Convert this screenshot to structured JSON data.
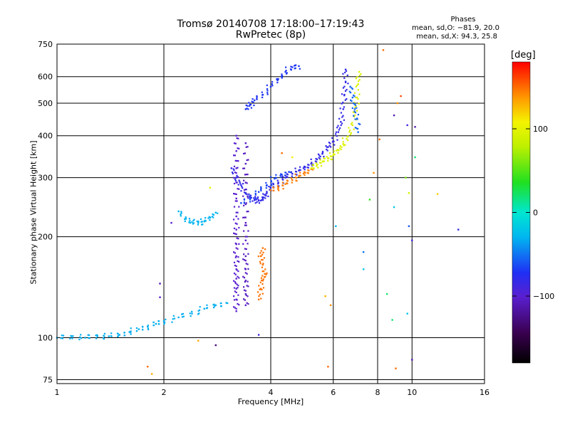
{
  "chart_data": {
    "type": "scatter",
    "title": "Tromsø 20140708 17:18:00–17:19:43",
    "subtitle": "RwPretec (8p)",
    "xlabel": "Frequency [MHz]",
    "ylabel": "Stationary phase Virtual Height [km]",
    "x_scale": "log",
    "y_scale": "log",
    "xlim": [
      1,
      16
    ],
    "ylim": [
      73,
      750
    ],
    "x_ticks": [
      1,
      2,
      4,
      6,
      8,
      10,
      16
    ],
    "y_ticks": [
      75,
      100,
      200,
      300,
      400,
      500,
      600,
      750
    ],
    "grid": true,
    "phases": {
      "heading": "Phases",
      "o_mode": "mean, sd,O: −81.9, 20.0",
      "x_mode": "mean, sd,X:  94.3, 25.8"
    },
    "colorbar": {
      "label": "[deg]",
      "ticks": [
        100,
        0,
        -100
      ],
      "range": [
        -180,
        180
      ]
    },
    "traces": [
      {
        "name": "",
        "phase": -32,
        "points": [
          [
            1.0,
            100
          ],
          [
            1.1,
            101
          ],
          [
            1.2,
            100
          ],
          [
            1.3,
            101
          ],
          [
            1.4,
            101
          ],
          [
            1.5,
            102
          ],
          [
            1.6,
            104
          ],
          [
            1.7,
            106
          ],
          [
            1.8,
            108
          ],
          [
            1.9,
            110
          ],
          [
            2.0,
            112
          ],
          [
            2.2,
            115
          ],
          [
            2.4,
            118
          ],
          [
            2.6,
            122
          ],
          [
            2.8,
            125
          ],
          [
            3.0,
            127
          ]
        ]
      },
      {
        "name": "",
        "phase": -30,
        "points": [
          [
            2.2,
            238
          ],
          [
            2.3,
            226
          ],
          [
            2.4,
            221
          ],
          [
            2.5,
            220
          ],
          [
            2.6,
            222
          ],
          [
            2.7,
            228
          ],
          [
            2.8,
            236
          ]
        ]
      },
      {
        "name": "",
        "phase": -82,
        "points": [
          [
            3.1,
            320
          ],
          [
            3.2,
            300
          ],
          [
            3.3,
            285
          ],
          [
            3.4,
            270
          ],
          [
            3.5,
            262
          ],
          [
            3.6,
            258
          ],
          [
            3.7,
            256
          ],
          [
            3.8,
            260
          ],
          [
            3.9,
            270
          ],
          [
            4.0,
            280
          ],
          [
            4.2,
            290
          ],
          [
            4.4,
            300
          ],
          [
            4.6,
            308
          ],
          [
            4.8,
            315
          ],
          [
            5.0,
            322
          ],
          [
            5.2,
            330
          ],
          [
            5.4,
            340
          ],
          [
            5.6,
            355
          ],
          [
            5.8,
            370
          ],
          [
            6.0,
            385
          ],
          [
            6.2,
            410
          ],
          [
            6.3,
            440
          ],
          [
            6.4,
            480
          ],
          [
            6.45,
            530
          ],
          [
            6.5,
            580
          ],
          [
            6.5,
            630
          ]
        ]
      },
      {
        "name": "",
        "phase": -65,
        "points": [
          [
            3.3,
            252
          ],
          [
            3.5,
            260
          ],
          [
            3.7,
            272
          ],
          [
            3.9,
            285
          ],
          [
            4.1,
            298
          ],
          [
            4.3,
            306
          ],
          [
            4.5,
            312
          ]
        ]
      },
      {
        "name": "",
        "phase": -70,
        "points": [
          [
            3.4,
            480
          ],
          [
            3.5,
            495
          ],
          [
            3.6,
            510
          ],
          [
            3.8,
            530
          ],
          [
            4.0,
            560
          ],
          [
            4.2,
            590
          ],
          [
            4.4,
            620
          ],
          [
            4.6,
            640
          ],
          [
            4.8,
            645
          ]
        ]
      },
      {
        "name": "",
        "phase": -100,
        "points": [
          [
            3.2,
            400
          ],
          [
            3.2,
            360
          ],
          [
            3.2,
            320
          ],
          [
            3.2,
            290
          ],
          [
            3.2,
            260
          ],
          [
            3.2,
            230
          ],
          [
            3.2,
            210
          ],
          [
            3.2,
            190
          ],
          [
            3.2,
            175
          ],
          [
            3.2,
            160
          ],
          [
            3.2,
            150
          ],
          [
            3.2,
            140
          ],
          [
            3.2,
            130
          ],
          [
            3.2,
            120
          ]
        ]
      },
      {
        "name": "",
        "phase": -105,
        "points": [
          [
            3.4,
            380
          ],
          [
            3.4,
            330
          ],
          [
            3.4,
            290
          ],
          [
            3.4,
            250
          ],
          [
            3.4,
            220
          ],
          [
            3.4,
            195
          ],
          [
            3.4,
            175
          ],
          [
            3.4,
            160
          ],
          [
            3.4,
            148
          ],
          [
            3.4,
            135
          ],
          [
            3.4,
            125
          ]
        ]
      },
      {
        "name": "",
        "phase": 148,
        "points": [
          [
            3.7,
            130
          ],
          [
            3.75,
            140
          ],
          [
            3.8,
            148
          ],
          [
            3.85,
            155
          ],
          [
            3.8,
            165
          ],
          [
            3.75,
            175
          ],
          [
            3.8,
            185
          ]
        ]
      },
      {
        "name": "",
        "phase": 145,
        "points": [
          [
            4.0,
            275
          ],
          [
            4.2,
            280
          ],
          [
            4.4,
            287
          ],
          [
            4.6,
            295
          ],
          [
            4.8,
            303
          ],
          [
            5.0,
            310
          ],
          [
            5.2,
            318
          ]
        ]
      },
      {
        "name": "",
        "phase": 95,
        "points": [
          [
            5.2,
            320
          ],
          [
            5.4,
            328
          ],
          [
            5.6,
            335
          ],
          [
            5.8,
            342
          ],
          [
            6.0,
            350
          ],
          [
            6.2,
            362
          ],
          [
            6.4,
            378
          ],
          [
            6.6,
            398
          ],
          [
            6.8,
            430
          ],
          [
            6.9,
            470
          ],
          [
            7.0,
            520
          ],
          [
            7.05,
            570
          ],
          [
            7.1,
            620
          ]
        ]
      },
      {
        "name": "",
        "phase": -55,
        "points": [
          [
            6.7,
            560
          ],
          [
            6.8,
            520
          ],
          [
            6.9,
            480
          ],
          [
            7.0,
            450
          ],
          [
            7.05,
            410
          ]
        ]
      }
    ],
    "scattered": [
      {
        "x": 8.3,
        "y": 720,
        "phase": 150
      },
      {
        "x": 9.1,
        "y": 500,
        "phase": 140
      },
      {
        "x": 9.3,
        "y": 525,
        "phase": 160
      },
      {
        "x": 8.9,
        "y": 460,
        "phase": -110
      },
      {
        "x": 9.7,
        "y": 430,
        "phase": -90
      },
      {
        "x": 10.2,
        "y": 425,
        "phase": -110
      },
      {
        "x": 10.2,
        "y": 345,
        "phase": 20
      },
      {
        "x": 9.6,
        "y": 300,
        "phase": 60
      },
      {
        "x": 11.8,
        "y": 268,
        "phase": 120
      },
      {
        "x": 9.8,
        "y": 270,
        "phase": 90
      },
      {
        "x": 8.1,
        "y": 390,
        "phase": 150
      },
      {
        "x": 8.9,
        "y": 245,
        "phase": -20
      },
      {
        "x": 9.8,
        "y": 215,
        "phase": -60
      },
      {
        "x": 13.5,
        "y": 210,
        "phase": -80
      },
      {
        "x": 10.0,
        "y": 195,
        "phase": -90
      },
      {
        "x": 7.3,
        "y": 180,
        "phase": -50
      },
      {
        "x": 7.3,
        "y": 160,
        "phase": -20
      },
      {
        "x": 8.5,
        "y": 135,
        "phase": 20
      },
      {
        "x": 9.7,
        "y": 118,
        "phase": -20
      },
      {
        "x": 8.8,
        "y": 113,
        "phase": 20
      },
      {
        "x": 10.0,
        "y": 86,
        "phase": -110
      },
      {
        "x": 9.0,
        "y": 81,
        "phase": 150
      },
      {
        "x": 5.7,
        "y": 133,
        "phase": 130
      },
      {
        "x": 5.9,
        "y": 125,
        "phase": 140
      },
      {
        "x": 5.8,
        "y": 82,
        "phase": 150
      },
      {
        "x": 6.1,
        "y": 215,
        "phase": -30
      },
      {
        "x": 7.6,
        "y": 258,
        "phase": 40
      },
      {
        "x": 7.8,
        "y": 310,
        "phase": 140
      },
      {
        "x": 2.7,
        "y": 280,
        "phase": 100
      },
      {
        "x": 2.1,
        "y": 220,
        "phase": -100
      },
      {
        "x": 1.95,
        "y": 132,
        "phase": -100
      },
      {
        "x": 1.95,
        "y": 145,
        "phase": -110
      },
      {
        "x": 1.8,
        "y": 82,
        "phase": 150
      },
      {
        "x": 1.85,
        "y": 78,
        "phase": 130
      },
      {
        "x": 2.5,
        "y": 98,
        "phase": 130
      },
      {
        "x": 2.8,
        "y": 95,
        "phase": -130
      },
      {
        "x": 3.7,
        "y": 102,
        "phase": -90
      },
      {
        "x": 4.3,
        "y": 355,
        "phase": 150
      },
      {
        "x": 4.6,
        "y": 345,
        "phase": 110
      }
    ]
  }
}
